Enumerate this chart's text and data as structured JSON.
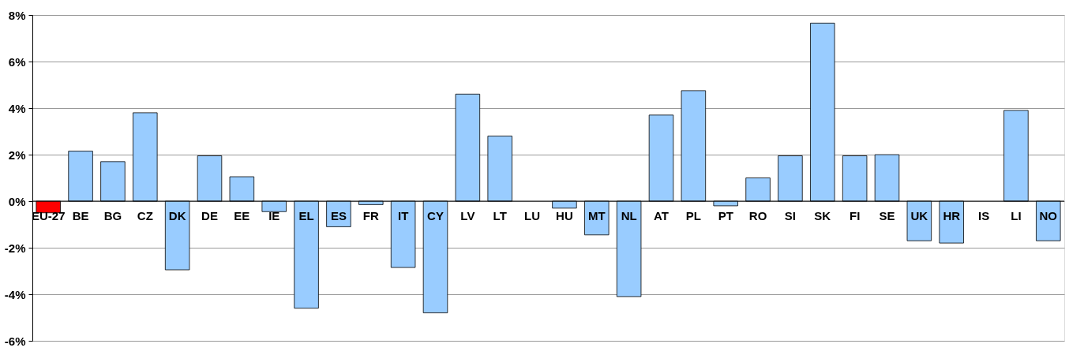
{
  "chart_data": {
    "type": "bar",
    "categories": [
      "EU-27",
      "BE",
      "BG",
      "CZ",
      "DK",
      "DE",
      "EE",
      "IE",
      "EL",
      "ES",
      "FR",
      "IT",
      "CY",
      "LV",
      "LT",
      "LU",
      "HU",
      "MT",
      "NL",
      "AT",
      "PL",
      "PT",
      "RO",
      "SI",
      "SK",
      "FI",
      "SE",
      "UK",
      "HR",
      "IS",
      "LI",
      "NO"
    ],
    "values": [
      -0.5,
      2.15,
      1.7,
      3.8,
      -2.95,
      1.95,
      1.05,
      -0.45,
      -4.6,
      -1.1,
      -0.15,
      -2.85,
      -4.8,
      4.6,
      2.8,
      null,
      -0.3,
      -1.45,
      -4.1,
      3.7,
      4.75,
      -0.2,
      1.0,
      1.95,
      7.65,
      1.95,
      2.0,
      -1.7,
      -1.8,
      null,
      3.9,
      -1.7
    ],
    "colors": [
      "#ff0000",
      "#99ccff",
      "#99ccff",
      "#99ccff",
      "#99ccff",
      "#99ccff",
      "#99ccff",
      "#99ccff",
      "#99ccff",
      "#99ccff",
      "#99ccff",
      "#99ccff",
      "#99ccff",
      "#99ccff",
      "#99ccff",
      "#99ccff",
      "#99ccff",
      "#99ccff",
      "#99ccff",
      "#99ccff",
      "#99ccff",
      "#99ccff",
      "#99ccff",
      "#99ccff",
      "#99ccff",
      "#99ccff",
      "#99ccff",
      "#99ccff",
      "#99ccff",
      "#99ccff",
      "#99ccff",
      "#99ccff"
    ],
    "ylim": [
      -6,
      8
    ],
    "yticks": [
      {
        "value": -6,
        "label": "-6%"
      },
      {
        "value": -4,
        "label": "-4%"
      },
      {
        "value": -2,
        "label": "-2%"
      },
      {
        "value": 0,
        "label": "0%"
      },
      {
        "value": 2,
        "label": "2%"
      },
      {
        "value": 4,
        "label": "4%"
      },
      {
        "value": 6,
        "label": "6%"
      },
      {
        "value": 8,
        "label": "8%"
      }
    ],
    "grid": "y"
  }
}
